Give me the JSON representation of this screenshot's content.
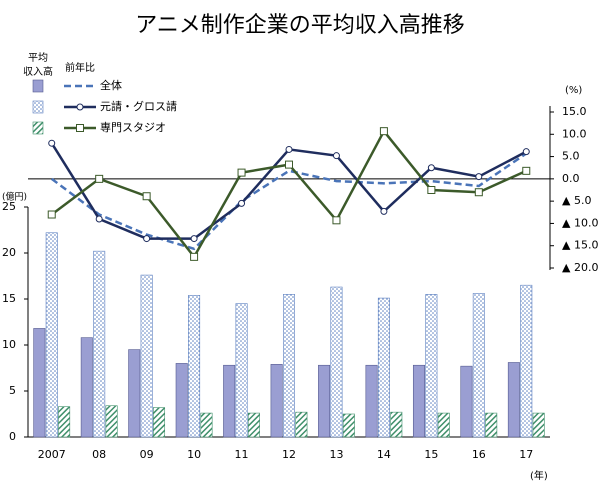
{
  "chart_data": {
    "type": "bar-line",
    "title": "アニメ制作企業の平均収入高推移",
    "legend_bar_header": [
      "平均",
      "収入高"
    ],
    "legend_line_header": "前年比",
    "y_label": "(億円)",
    "y2_label": "(%)",
    "x_label": "(年)",
    "categories": [
      "2007",
      "08",
      "09",
      "10",
      "11",
      "12",
      "13",
      "14",
      "15",
      "16",
      "17"
    ],
    "ylim": [
      0,
      25
    ],
    "yticks": [
      0,
      5,
      10,
      15,
      20,
      25
    ],
    "y2lim": [
      -20,
      15
    ],
    "y2ticks": [
      {
        "value": 15,
        "label": "15.0"
      },
      {
        "value": 10,
        "label": "10.0"
      },
      {
        "value": 5,
        "label": "5.0"
      },
      {
        "value": 0,
        "label": "0.0"
      },
      {
        "value": -5,
        "label": "▲ 5.0"
      },
      {
        "value": -10,
        "label": "▲ 10.0"
      },
      {
        "value": -15,
        "label": "▲ 15.0"
      },
      {
        "value": -20,
        "label": "▲ 20.0"
      }
    ],
    "series": [
      {
        "name": "全体",
        "bar_color": "#9a9ed2",
        "line_color": "#4a74b8",
        "line_style": "dashed",
        "marker": "none",
        "values": [
          11.8,
          10.8,
          9.5,
          8.0,
          7.8,
          7.9,
          7.8,
          7.8,
          7.8,
          7.7,
          8.1
        ],
        "growth": [
          0,
          -8,
          -12.5,
          -15.7,
          -5,
          1.8,
          -0.5,
          -1,
          -0.5,
          -1.6,
          5.7
        ]
      },
      {
        "name": "元請・グロス請",
        "bar_color": "#5b7fc0",
        "line_color": "#1f2d5e",
        "line_style": "solid",
        "marker": "circle",
        "values": [
          22.2,
          20.2,
          17.6,
          15.4,
          14.5,
          15.5,
          16.3,
          15.1,
          15.5,
          15.6,
          16.5
        ],
        "growth": [
          8,
          -9,
          -13.4,
          -13.4,
          -5.5,
          6.6,
          5.2,
          -7.3,
          2.5,
          0.5,
          6.1
        ]
      },
      {
        "name": "専門スタジオ",
        "bar_color": "#3f8f6a",
        "line_color": "#3c5a2a",
        "line_style": "solid",
        "marker": "square",
        "values": [
          3.3,
          3.4,
          3.2,
          2.6,
          2.6,
          2.7,
          2.5,
          2.7,
          2.6,
          2.6,
          2.6
        ],
        "growth": [
          -8,
          0,
          -3.9,
          -17.5,
          1.4,
          3.2,
          -9.3,
          10.7,
          -2.5,
          -3,
          1.8
        ]
      }
    ]
  }
}
